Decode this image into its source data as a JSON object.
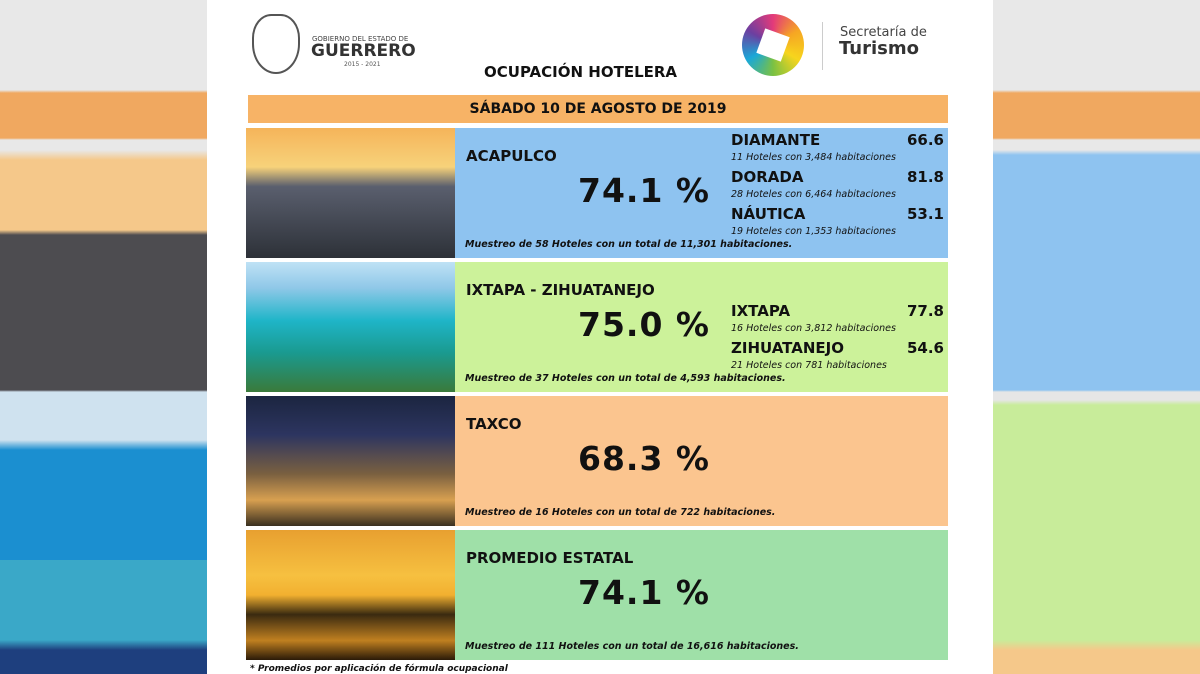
{
  "header": {
    "gov_line1": "GOBIERNO DEL ESTADO DE",
    "gov_name": "GUERRERO",
    "gov_years": "2015 - 2021",
    "sec_line1": "Secretaría de",
    "sec_name": "Turismo"
  },
  "title": "OCUPACIÓN HOTELERA",
  "date": "SÁBADO 10 DE AGOSTO DE 2019",
  "sections": [
    {
      "name": "ACAPULCO",
      "rate": "74.1 %",
      "subzones": [
        {
          "name": "DIAMANTE",
          "value": "66.6",
          "detail": "11 Hoteles con 3,484 habitaciones"
        },
        {
          "name": "DORADA",
          "value": "81.8",
          "detail": "28 Hoteles con 6,464 habitaciones"
        },
        {
          "name": "NÁUTICA",
          "value": "53.1",
          "detail": "19 Hoteles con 1,353 habitaciones"
        }
      ],
      "sample": "Muestreo de 58 Hoteles con un total de 11,301 habitaciones."
    },
    {
      "name": "IXTAPA - ZIHUATANEJO",
      "rate": "75.0 %",
      "subzones": [
        {
          "name": "IXTAPA",
          "value": "77.8",
          "detail": "16 Hoteles con 3,812 habitaciones"
        },
        {
          "name": "ZIHUATANEJO",
          "value": "54.6",
          "detail": "21 Hoteles con 781 habitaciones"
        }
      ],
      "sample": "Muestreo de 37 Hoteles con un total de 4,593 habitaciones."
    },
    {
      "name": "TAXCO",
      "rate": "68.3 %",
      "subzones": [],
      "sample": "Muestreo de 16 Hoteles con un total de 722 habitaciones."
    },
    {
      "name": "PROMEDIO ESTATAL",
      "rate": "74.1 %",
      "subzones": [],
      "sample": "Muestreo de 111 Hoteles con un total de 16,616 habitaciones."
    }
  ],
  "footnote": "* Promedios por aplicación de fórmula ocupacional"
}
